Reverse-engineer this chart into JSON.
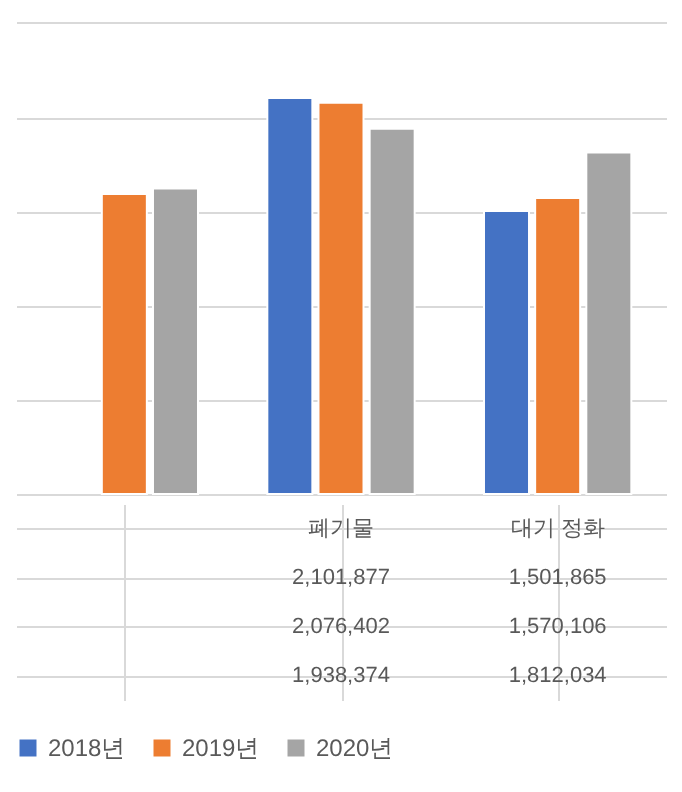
{
  "chart_data": {
    "type": "bar",
    "categories": [
      null,
      "폐기물",
      "대기 정화"
    ],
    "series": [
      {
        "name": "2018년",
        "color": "#4472c4",
        "values": [
          null,
          2101877,
          1501865
        ],
        "value_labels": [
          null,
          "2,101,877",
          "1,501,865"
        ]
      },
      {
        "name": "2019년",
        "color": "#ed7d31",
        "values": [
          1592015,
          2076402,
          1570106
        ],
        "value_labels": [
          null,
          "2,076,402",
          "1,570,106"
        ]
      },
      {
        "name": "2020년",
        "color": "#a5a5a5",
        "values": [
          1621374,
          1938374,
          1812034
        ],
        "value_labels": [
          null,
          "1,938,374",
          "1,812,034"
        ]
      }
    ],
    "ylim": [
      0,
      2600000
    ],
    "yticks": [
      0,
      500000,
      1000000,
      1500000,
      2000000,
      2500000
    ],
    "tick_labels": "x",
    "grid": "y",
    "legend": "bottom"
  }
}
